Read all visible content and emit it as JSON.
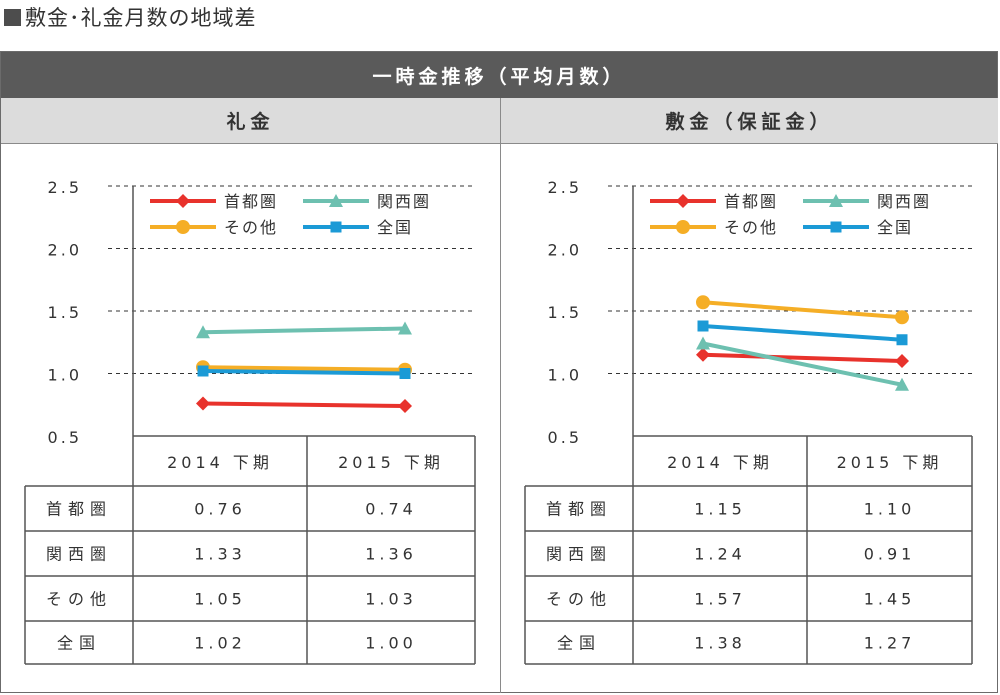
{
  "page_title": "敷金･礼金月数の地域差",
  "banner_title": "一時金推移（平均月数）",
  "colors": {
    "shutoken": "#e8322c",
    "kansai": "#6dc0b0",
    "sonota": "#f5ae26",
    "zenkoku": "#1b9ad6"
  },
  "chart_data": [
    {
      "type": "line",
      "title": "礼金",
      "categories": [
        "2014 下期",
        "2015 下期"
      ],
      "ylim": [
        0.5,
        2.5
      ],
      "yticks": [
        "0.5",
        "1.0",
        "1.5",
        "2.0",
        "2.5"
      ],
      "legend_position": "top",
      "series": [
        {
          "name": "首都圏",
          "values": [
            0.76,
            0.74
          ],
          "display": [
            "0.76",
            "0.74"
          ],
          "color": "#e8322c",
          "marker": "diamond"
        },
        {
          "name": "関西圏",
          "values": [
            1.33,
            1.36
          ],
          "display": [
            "1.33",
            "1.36"
          ],
          "color": "#6dc0b0",
          "marker": "triangle"
        },
        {
          "name": "その他",
          "values": [
            1.05,
            1.03
          ],
          "display": [
            "1.05",
            "1.03"
          ],
          "color": "#f5ae26",
          "marker": "circle"
        },
        {
          "name": "全国",
          "values": [
            1.02,
            1.0
          ],
          "display": [
            "1.02",
            "1.00"
          ],
          "color": "#1b9ad6",
          "marker": "square"
        }
      ]
    },
    {
      "type": "line",
      "title": "敷金（保証金）",
      "categories": [
        "2014 下期",
        "2015 下期"
      ],
      "ylim": [
        0.5,
        2.5
      ],
      "yticks": [
        "0.5",
        "1.0",
        "1.5",
        "2.0",
        "2.5"
      ],
      "legend_position": "top",
      "series": [
        {
          "name": "首都圏",
          "values": [
            1.15,
            1.1
          ],
          "display": [
            "1.15",
            "1.10"
          ],
          "color": "#e8322c",
          "marker": "diamond"
        },
        {
          "name": "関西圏",
          "values": [
            1.24,
            0.91
          ],
          "display": [
            "1.24",
            "0.91"
          ],
          "color": "#6dc0b0",
          "marker": "triangle"
        },
        {
          "name": "その他",
          "values": [
            1.57,
            1.45
          ],
          "display": [
            "1.57",
            "1.45"
          ],
          "color": "#f5ae26",
          "marker": "circle"
        },
        {
          "name": "全国",
          "values": [
            1.38,
            1.27
          ],
          "display": [
            "1.38",
            "1.27"
          ],
          "color": "#1b9ad6",
          "marker": "square"
        }
      ]
    }
  ]
}
